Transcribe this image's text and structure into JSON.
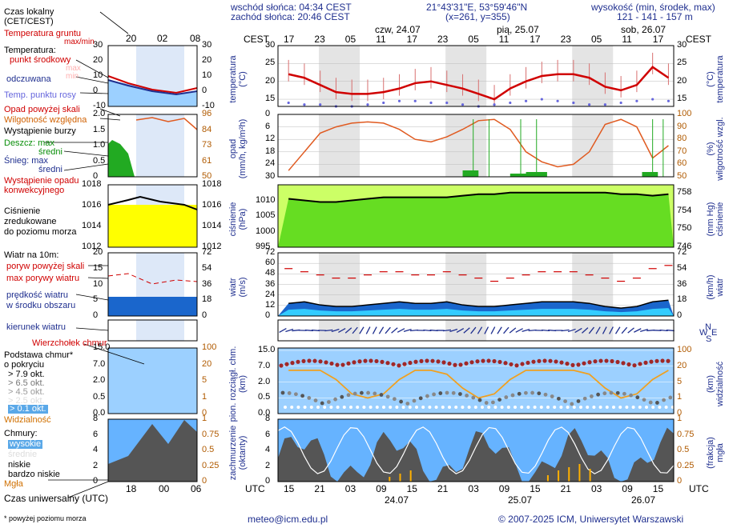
{
  "header": {
    "sunrise": "wschód słońca: 04:34 CEST",
    "sunset": "zachód słońca: 20:46 CEST",
    "coords": "21°43'31\"E, 53°59'46\"N",
    "grid": "(x=261, y=355)",
    "altitude_label": "wysokość (min, środek, max)",
    "altitude_values": "121 - 141 - 157 m"
  },
  "legend": {
    "local_time": "Czas lokalny\n(CET/CEST)",
    "ground_temp": "Temperatura gruntu",
    "ground_temp_sub": "max/min",
    "temperature": "Temperatura:",
    "center_point": "punkt środkowy",
    "max": "max",
    "min": "min",
    "perceived": "odczuwana",
    "dew_point": "Temp. punktu rosy",
    "precip_above": "Opad powyżej skali",
    "humidity": "Wilgotność względna",
    "storm": "Wystąpienie burzy",
    "rain_max": "Deszcz: max",
    "rain_mid": "średni",
    "snow_max": "Śnieg: max",
    "snow_mid": "średni",
    "convective": "Wystąpienie opadu\nkonwekcyjnego",
    "pressure": "Ciśnienie\nzredukowane\ndo poziomu morza",
    "wind_10m": "Wiatr na 10m:",
    "gust_above": "poryw powyżej skali",
    "max_gust": "max porywy wiatru",
    "wind_speed": "prędkość wiatru\nw środku obszaru",
    "wind_dir": "kierunek wiatru",
    "cloud_top": "Wierzchołek chmur",
    "cloud_base": "Podstawa chmur*\no pokryciu",
    "okt79": "> 7.9 okt.",
    "okt65": "> 6.5 okt.",
    "okt45": "> 4.5 okt.",
    "okt25": "> 2.5 okt.",
    "okt01": "> 0.1 okt.",
    "visibility": "Widzialność",
    "clouds": "Chmury:",
    "high": "wysokie",
    "mid": "średnie",
    "low": "niskie",
    "very_low": "bardzo niskie",
    "fog": "Mgła",
    "utc_time": "Czas uniwersalny (UTC)",
    "footnote": "* powyżej poziomu morza"
  },
  "axes": {
    "cest": "CEST",
    "utc": "UTC",
    "local_ticks": [
      "20",
      "02",
      "08"
    ],
    "local_utc_ticks": [
      "18",
      "00",
      "06"
    ],
    "top_hours": [
      "17",
      "23",
      "05",
      "11",
      "17",
      "23",
      "05",
      "11",
      "17",
      "23",
      "05",
      "11",
      "17"
    ],
    "bottom_hours": [
      "15",
      "21",
      "03",
      "09",
      "15",
      "21",
      "03",
      "09",
      "15",
      "21",
      "03",
      "09",
      "15"
    ],
    "days_top": [
      "czw, 24.07",
      "pią, 25.07",
      "sob, 26.07"
    ],
    "days_bottom": [
      "24.07",
      "25.07",
      "26.07"
    ],
    "temp_ticks": [
      "30",
      "25",
      "20",
      "15"
    ],
    "small_temp_ticks": [
      "30",
      "20",
      "10",
      "0",
      "-10"
    ],
    "precip_ticks": [
      "30",
      "24",
      "18",
      "12",
      "6",
      "0"
    ],
    "humid_ticks": [
      "100",
      "90",
      "80",
      "70",
      "60",
      "50"
    ],
    "small_precip_ticks": [
      "2.0",
      "1.5",
      "1.0",
      "0.5",
      "0"
    ],
    "small_humid_ticks": [
      "96",
      "84",
      "73",
      "61",
      "50"
    ],
    "pres_ticks": [
      "1010",
      "1005",
      "1000",
      "995"
    ],
    "pres_hg_ticks": [
      "758",
      "754",
      "750",
      "746"
    ],
    "small_pres_ticks": [
      "1018",
      "1016",
      "1014",
      "1012"
    ],
    "wind_ticks": [
      "72",
      "60",
      "48",
      "36",
      "24",
      "12",
      "0"
    ],
    "wind_kmh_ticks": [
      "72",
      "54",
      "36",
      "18",
      "0"
    ],
    "small_wind_ticks": [
      "20",
      "15",
      "10",
      "5",
      "0"
    ],
    "small_wind_kmh_ticks": [
      "72",
      "54",
      "36",
      "18",
      "0"
    ],
    "cloud_ticks": [
      "15.0",
      "7.0",
      "2.0",
      "0.5",
      "0.0"
    ],
    "vis_ticks": [
      "100",
      "20",
      "5",
      "1",
      "0"
    ],
    "cover_ticks": [
      "8",
      "6",
      "4",
      "2",
      "0"
    ],
    "frac_ticks": [
      "1",
      "0.75",
      "0.5",
      "0.25",
      "0"
    ],
    "titles": {
      "temp": "temperatura\n(°C)",
      "temp_r": "(°C)\ntemperatura",
      "precip": "opad\n(mm/h, kg/m²h)",
      "humid_r": "(%)\nwilgotność wzgl.",
      "pres": "ciśnienie\n(hPa)",
      "pres_r": "(mm Hg)\nciśnienie",
      "wind": "wiatr\n(m/s)",
      "wind_r": "(km/h)\nwiatr",
      "cloud": "pion. rozciągł. chm.\n(km)",
      "vis_r": "(km)\nwidzialność",
      "cover": "zachmurzenie\n(oktanty)",
      "frac_r": "(frakcja)\nmgła"
    }
  },
  "footer": {
    "email": "meteo@icm.edu.pl",
    "copyright": "© 2007-2025 ICM, Uniwersytet Warszawski"
  },
  "colors": {
    "navy": "#1f2f8f",
    "red": "#d00000",
    "green": "#0a8f0a",
    "sky": "#99ccff",
    "yellow": "#ffff00",
    "lime": "#66dd22",
    "orange": "#e07000"
  },
  "chart_data": {
    "type": "line",
    "x_hours_utc": [
      15,
      18,
      21,
      24,
      27,
      30,
      33,
      36,
      39,
      42,
      45,
      48,
      51,
      54,
      57,
      60,
      63,
      66,
      69,
      72,
      75,
      78,
      81,
      84,
      87
    ],
    "temperature": [
      22,
      21,
      19,
      17,
      16.5,
      16.5,
      17,
      18,
      19.5,
      20,
      19,
      18,
      16.5,
      15,
      18,
      20,
      21.5,
      22,
      22,
      21,
      18.5,
      17.5,
      19,
      24,
      21
    ],
    "dew_point": [
      14,
      13.5,
      13.5,
      13,
      13,
      13.5,
      14,
      14.5,
      14.5,
      14,
      14,
      13.5,
      13,
      13.5,
      14,
      14.5,
      15,
      14.5,
      14,
      13.5,
      13.5,
      14,
      14.5,
      15,
      14.5
    ],
    "humidity": [
      55,
      70,
      85,
      90,
      93,
      94,
      93,
      88,
      80,
      78,
      82,
      88,
      95,
      96,
      88,
      70,
      62,
      58,
      60,
      70,
      92,
      96,
      90,
      65,
      75
    ],
    "pressure_hpa": [
      1010.5,
      1010,
      1009.5,
      1009.5,
      1010,
      1010.5,
      1011,
      1011,
      1011,
      1011,
      1011,
      1011.5,
      1012,
      1012,
      1012.5,
      1012.5,
      1012.5,
      1012.5,
      1012.5,
      1012.5,
      1012.5,
      1012,
      1012,
      1011.5,
      1012
    ],
    "wind_ms": [
      4,
      4.5,
      3.5,
      3,
      3,
      3.5,
      4,
      4.5,
      4,
      4,
      4.5,
      3.5,
      3,
      3,
      3.5,
      4,
      4.5,
      4.5,
      4.5,
      4,
      3,
      2.5,
      3,
      4.5,
      5
    ],
    "gust_ms": [
      15,
      14,
      13,
      12,
      12,
      13,
      14,
      14,
      13,
      13,
      14,
      13,
      12,
      11,
      12,
      13,
      14,
      14,
      14,
      13,
      12,
      11,
      12,
      15,
      16
    ],
    "visibility": [
      20,
      20,
      20,
      10,
      3,
      2,
      3,
      10,
      20,
      20,
      15,
      5,
      2,
      3,
      10,
      20,
      20,
      20,
      20,
      15,
      5,
      2,
      3,
      10,
      20
    ]
  }
}
